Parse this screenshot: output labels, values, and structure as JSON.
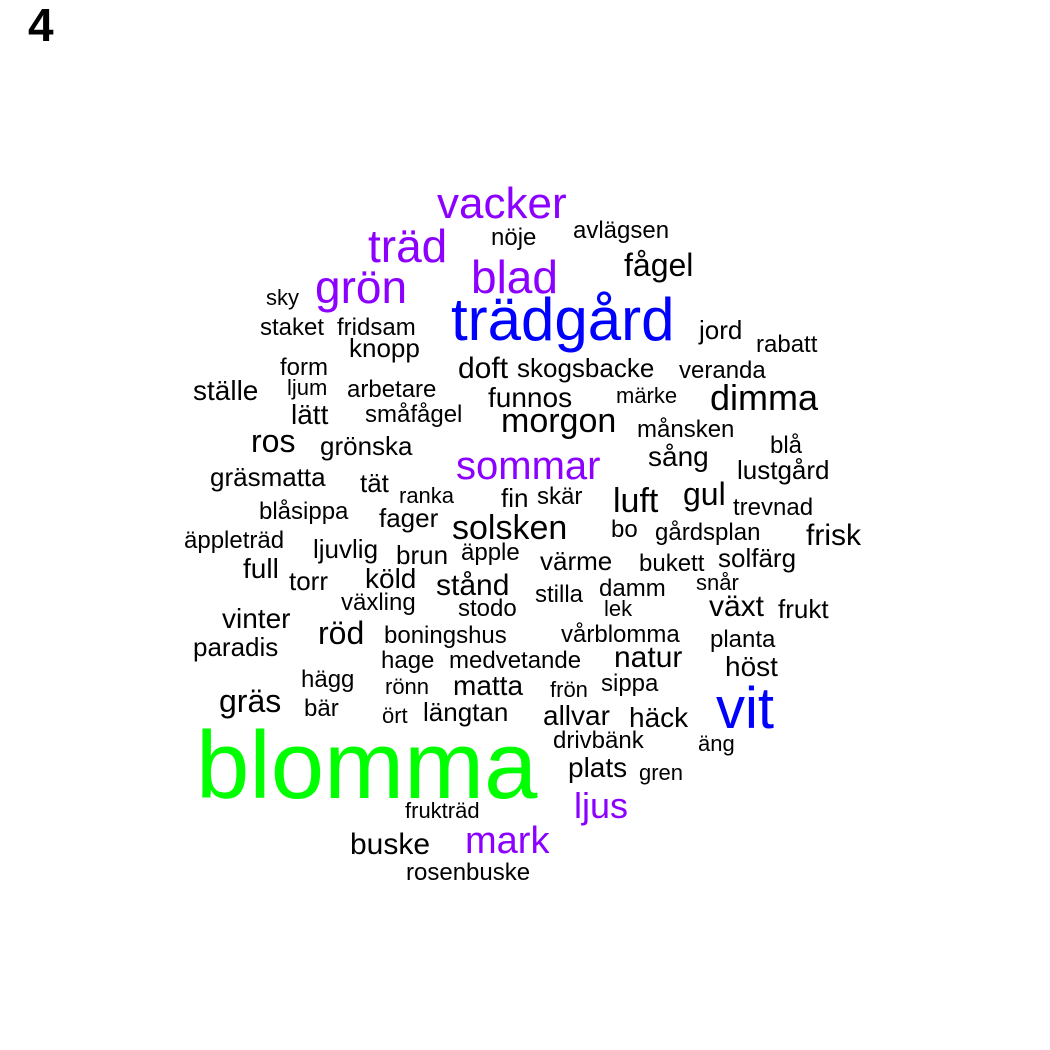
{
  "panel_label": "4",
  "chart_data": {
    "type": "wordcloud",
    "colors": {
      "black": "#000000",
      "purple": "#8b00ff",
      "blue": "#0000ff",
      "green": "#00ff00"
    },
    "words": [
      {
        "text": "blomma",
        "color": "green"
      },
      {
        "text": "trädgård",
        "color": "blue"
      },
      {
        "text": "vit",
        "color": "blue"
      },
      {
        "text": "vacker",
        "color": "purple"
      },
      {
        "text": "träd",
        "color": "purple"
      },
      {
        "text": "blad",
        "color": "purple"
      },
      {
        "text": "grön",
        "color": "purple"
      },
      {
        "text": "sommar",
        "color": "purple"
      },
      {
        "text": "mark",
        "color": "purple"
      },
      {
        "text": "ljus",
        "color": "purple"
      },
      {
        "text": "nöje",
        "color": "black"
      },
      {
        "text": "avlägsen",
        "color": "black"
      },
      {
        "text": "fågel",
        "color": "black"
      },
      {
        "text": "sky",
        "color": "black"
      },
      {
        "text": "staket",
        "color": "black"
      },
      {
        "text": "fridsam",
        "color": "black"
      },
      {
        "text": "jord",
        "color": "black"
      },
      {
        "text": "rabatt",
        "color": "black"
      },
      {
        "text": "knopp",
        "color": "black"
      },
      {
        "text": "form",
        "color": "black"
      },
      {
        "text": "doft",
        "color": "black"
      },
      {
        "text": "skogsbacke",
        "color": "black"
      },
      {
        "text": "veranda",
        "color": "black"
      },
      {
        "text": "ställe",
        "color": "black"
      },
      {
        "text": "ljum",
        "color": "black"
      },
      {
        "text": "arbetare",
        "color": "black"
      },
      {
        "text": "funnos",
        "color": "black"
      },
      {
        "text": "märke",
        "color": "black"
      },
      {
        "text": "dimma",
        "color": "black"
      },
      {
        "text": "lätt",
        "color": "black"
      },
      {
        "text": "småfågel",
        "color": "black"
      },
      {
        "text": "morgon",
        "color": "black"
      },
      {
        "text": "månsken",
        "color": "black"
      },
      {
        "text": "ros",
        "color": "black"
      },
      {
        "text": "grönska",
        "color": "black"
      },
      {
        "text": "blå",
        "color": "black"
      },
      {
        "text": "sång",
        "color": "black"
      },
      {
        "text": "gräsmatta",
        "color": "black"
      },
      {
        "text": "tät",
        "color": "black"
      },
      {
        "text": "lustgård",
        "color": "black"
      },
      {
        "text": "ranka",
        "color": "black"
      },
      {
        "text": "fin",
        "color": "black"
      },
      {
        "text": "skär",
        "color": "black"
      },
      {
        "text": "luft",
        "color": "black"
      },
      {
        "text": "gul",
        "color": "black"
      },
      {
        "text": "trevnad",
        "color": "black"
      },
      {
        "text": "blåsippa",
        "color": "black"
      },
      {
        "text": "fager",
        "color": "black"
      },
      {
        "text": "solsken",
        "color": "black"
      },
      {
        "text": "bo",
        "color": "black"
      },
      {
        "text": "gårdsplan",
        "color": "black"
      },
      {
        "text": "frisk",
        "color": "black"
      },
      {
        "text": "äppleträd",
        "color": "black"
      },
      {
        "text": "ljuvlig",
        "color": "black"
      },
      {
        "text": "brun",
        "color": "black"
      },
      {
        "text": "äpple",
        "color": "black"
      },
      {
        "text": "värme",
        "color": "black"
      },
      {
        "text": "bukett",
        "color": "black"
      },
      {
        "text": "solfärg",
        "color": "black"
      },
      {
        "text": "full",
        "color": "black"
      },
      {
        "text": "torr",
        "color": "black"
      },
      {
        "text": "köld",
        "color": "black"
      },
      {
        "text": "stånd",
        "color": "black"
      },
      {
        "text": "stilla",
        "color": "black"
      },
      {
        "text": "damm",
        "color": "black"
      },
      {
        "text": "snår",
        "color": "black"
      },
      {
        "text": "växling",
        "color": "black"
      },
      {
        "text": "stodo",
        "color": "black"
      },
      {
        "text": "lek",
        "color": "black"
      },
      {
        "text": "växt",
        "color": "black"
      },
      {
        "text": "frukt",
        "color": "black"
      },
      {
        "text": "vinter",
        "color": "black"
      },
      {
        "text": "röd",
        "color": "black"
      },
      {
        "text": "boningshus",
        "color": "black"
      },
      {
        "text": "vårblomma",
        "color": "black"
      },
      {
        "text": "planta",
        "color": "black"
      },
      {
        "text": "paradis",
        "color": "black"
      },
      {
        "text": "hage",
        "color": "black"
      },
      {
        "text": "medvetande",
        "color": "black"
      },
      {
        "text": "natur",
        "color": "black"
      },
      {
        "text": "höst",
        "color": "black"
      },
      {
        "text": "hägg",
        "color": "black"
      },
      {
        "text": "rönn",
        "color": "black"
      },
      {
        "text": "matta",
        "color": "black"
      },
      {
        "text": "frön",
        "color": "black"
      },
      {
        "text": "sippa",
        "color": "black"
      },
      {
        "text": "gräs",
        "color": "black"
      },
      {
        "text": "bär",
        "color": "black"
      },
      {
        "text": "ört",
        "color": "black"
      },
      {
        "text": "längtan",
        "color": "black"
      },
      {
        "text": "allvar",
        "color": "black"
      },
      {
        "text": "häck",
        "color": "black"
      },
      {
        "text": "drivbänk",
        "color": "black"
      },
      {
        "text": "äng",
        "color": "black"
      },
      {
        "text": "plats",
        "color": "black"
      },
      {
        "text": "gren",
        "color": "black"
      },
      {
        "text": "frukträd",
        "color": "black"
      },
      {
        "text": "buske",
        "color": "black"
      },
      {
        "text": "rosenbuske",
        "color": "black"
      }
    ]
  }
}
